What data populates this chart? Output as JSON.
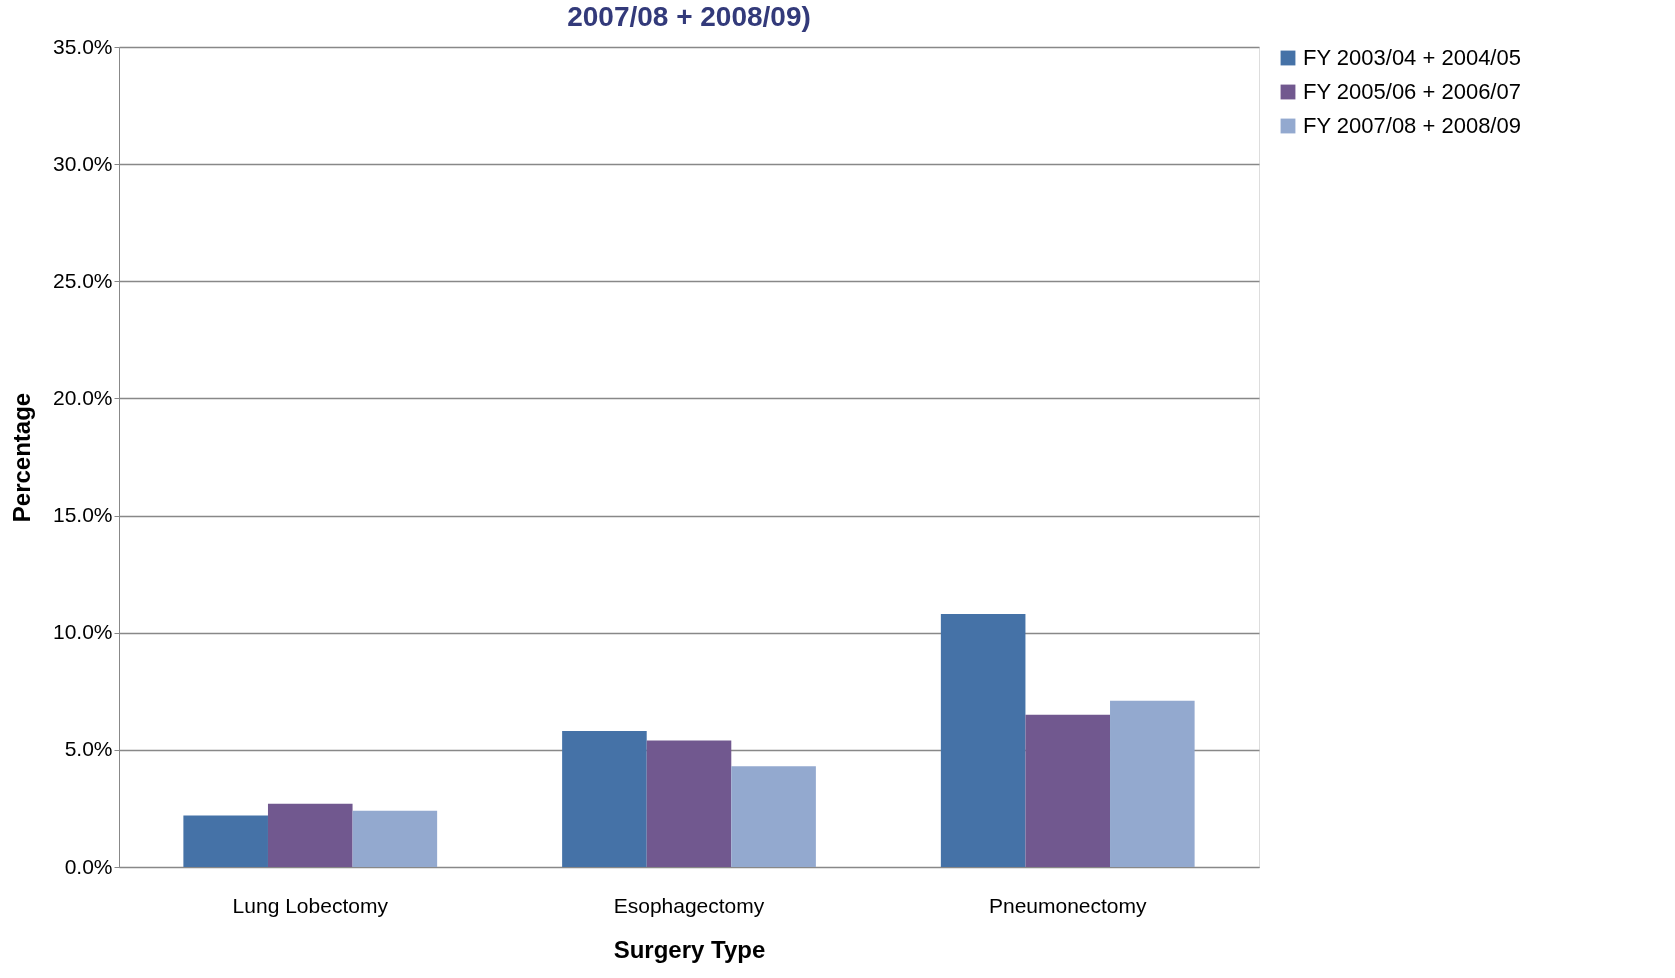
{
  "chart_data": {
    "type": "bar",
    "title": "2007/08 + 2008/09)",
    "xlabel": "Surgery Type",
    "ylabel": "Percentage",
    "categories": [
      "Lung Lobectomy",
      "Esophagectomy",
      "Pneumonectomy"
    ],
    "series": [
      {
        "name": "FY 2003/04 + 2004/05",
        "color": "#4572a7",
        "values": [
          2.2,
          5.8,
          10.8
        ]
      },
      {
        "name": "FY 2005/06 + 2006/07",
        "color": "#71588f",
        "values": [
          2.7,
          5.4,
          6.5
        ]
      },
      {
        "name": "FY 2007/08 + 2008/09",
        "color": "#93a9cf",
        "values": [
          2.4,
          4.3,
          7.1
        ]
      }
    ],
    "ylim": [
      0,
      35
    ],
    "yticks": [
      {
        "value": 0,
        "label": "0.0%"
      },
      {
        "value": 5,
        "label": "5.0%"
      },
      {
        "value": 10,
        "label": "10.0%"
      },
      {
        "value": 15,
        "label": "15.0%"
      },
      {
        "value": 20,
        "label": "20.0%"
      },
      {
        "value": 25,
        "label": "25.0%"
      },
      {
        "value": 30,
        "label": "30.0%"
      },
      {
        "value": 35,
        "label": "35.0%"
      }
    ],
    "grid": "y",
    "legend": "right"
  }
}
